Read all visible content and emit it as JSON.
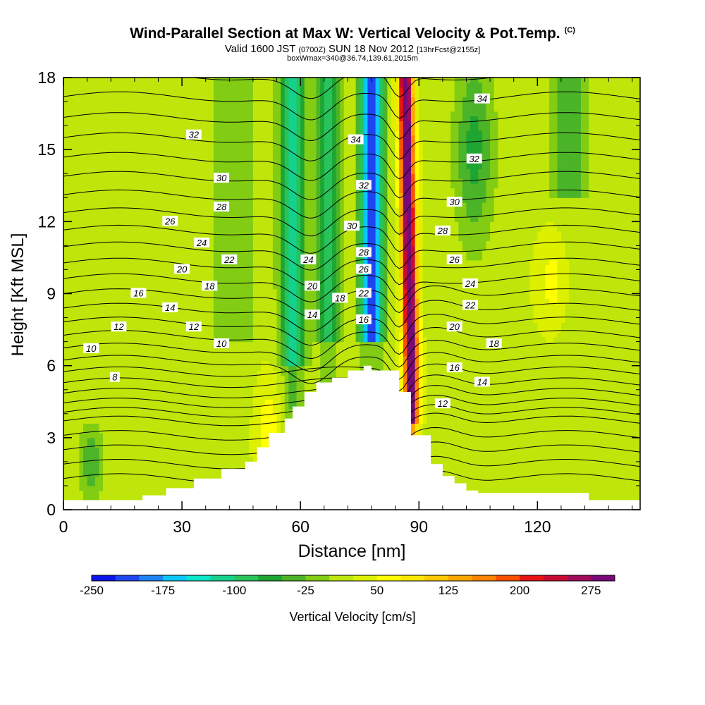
{
  "title": {
    "main": "Wind-Parallel Section at Max W: Vertical Velocity & Pot.Temp.",
    "copyright": "(C)",
    "subtitle_a": "Valid 1600 JST",
    "subtitle_b": "(0700Z)",
    "subtitle_c": "SUN 18 Nov 2012",
    "subtitle_d": "[13hrFcst@2155z]",
    "box": "boxWmax=340@36.74,139.61,2015m"
  },
  "chart_data": {
    "type": "heatmap",
    "xlabel": "Distance [nm]",
    "ylabel": "Height [Kft MSL]",
    "xlim": [
      0,
      146
    ],
    "ylim": [
      0,
      18
    ],
    "x_ticks": [
      "0",
      "30",
      "60",
      "90",
      "120"
    ],
    "x_tick_values": [
      0,
      30,
      60,
      90,
      120
    ],
    "x_minor_step": 6,
    "y_ticks": [
      "0",
      "3",
      "6",
      "9",
      "12",
      "15",
      "18"
    ],
    "y_tick_values": [
      0,
      3,
      6,
      9,
      12,
      15,
      18
    ],
    "y_minor_step": 1,
    "colorbar": {
      "label": "Vertical Velocity [cm/s]",
      "tick_labels": [
        "-250",
        "-175",
        "-100",
        "-25",
        "50",
        "125",
        "200",
        "275"
      ],
      "tick_values": [
        -250,
        -175,
        -100,
        -25,
        50,
        125,
        200,
        275
      ],
      "range": [
        -250,
        300
      ],
      "step": 25,
      "colors": [
        "#0a14e6",
        "#1e46f0",
        "#1e82f5",
        "#0ac8f5",
        "#0ae6c8",
        "#14d28c",
        "#28c35a",
        "#1ea532",
        "#4bb428",
        "#82cd14",
        "#bee60a",
        "#dcf000",
        "#ffff00",
        "#fae600",
        "#ffc800",
        "#ffa500",
        "#ff8200",
        "#fa5000",
        "#e61414",
        "#c80a32",
        "#a00a5a",
        "#780a78"
      ]
    },
    "terrain_kft": [
      [
        0,
        0.4
      ],
      [
        20,
        0.4
      ],
      [
        20,
        0.6
      ],
      [
        26,
        0.6
      ],
      [
        26,
        0.9
      ],
      [
        33,
        0.9
      ],
      [
        33,
        1.3
      ],
      [
        40,
        1.3
      ],
      [
        40,
        1.7
      ],
      [
        46,
        1.7
      ],
      [
        46,
        2.0
      ],
      [
        49,
        2.0
      ],
      [
        49,
        2.6
      ],
      [
        52,
        2.6
      ],
      [
        52,
        3.2
      ],
      [
        56,
        3.2
      ],
      [
        56,
        3.8
      ],
      [
        58,
        3.8
      ],
      [
        58,
        4.3
      ],
      [
        61,
        4.3
      ],
      [
        61,
        4.9
      ],
      [
        64,
        4.9
      ],
      [
        64,
        5.3
      ],
      [
        68,
        5.3
      ],
      [
        68,
        5.5
      ],
      [
        72,
        5.5
      ],
      [
        72,
        5.8
      ],
      [
        76,
        5.8
      ],
      [
        76,
        6.0
      ],
      [
        78,
        6.0
      ],
      [
        78,
        5.8
      ],
      [
        82,
        5.8
      ],
      [
        85,
        5.8
      ],
      [
        85,
        4.9
      ],
      [
        88,
        4.9
      ],
      [
        88,
        3.1
      ],
      [
        93,
        3.1
      ],
      [
        93,
        1.9
      ],
      [
        96,
        1.9
      ],
      [
        96,
        1.4
      ],
      [
        99,
        1.4
      ],
      [
        99,
        1.1
      ],
      [
        102,
        1.1
      ],
      [
        102,
        0.8
      ],
      [
        105,
        0.8
      ],
      [
        105,
        0.7
      ],
      [
        133,
        0.7
      ],
      [
        133,
        0.4
      ],
      [
        146,
        0.4
      ]
    ],
    "theta_contours": [
      8,
      10,
      12,
      14,
      16,
      18,
      20,
      22,
      24,
      26,
      28,
      30,
      32,
      34
    ],
    "contour_labels": [
      {
        "text": "32",
        "x": 33,
        "y": 15.6
      },
      {
        "text": "30",
        "x": 40,
        "y": 13.8
      },
      {
        "text": "28",
        "x": 40,
        "y": 12.6
      },
      {
        "text": "26",
        "x": 27,
        "y": 12.0
      },
      {
        "text": "24",
        "x": 35,
        "y": 11.1
      },
      {
        "text": "22",
        "x": 42,
        "y": 10.4
      },
      {
        "text": "20",
        "x": 30,
        "y": 10.0
      },
      {
        "text": "18",
        "x": 37,
        "y": 9.3
      },
      {
        "text": "16",
        "x": 19,
        "y": 9.0
      },
      {
        "text": "14",
        "x": 27,
        "y": 8.4
      },
      {
        "text": "12",
        "x": 14,
        "y": 7.6
      },
      {
        "text": "12",
        "x": 33,
        "y": 7.6
      },
      {
        "text": "10",
        "x": 40,
        "y": 6.9
      },
      {
        "text": "10",
        "x": 7,
        "y": 6.7
      },
      {
        "text": "8",
        "x": 13,
        "y": 5.5
      },
      {
        "text": "24",
        "x": 62,
        "y": 10.4
      },
      {
        "text": "20",
        "x": 63,
        "y": 9.3
      },
      {
        "text": "18",
        "x": 70,
        "y": 8.8
      },
      {
        "text": "14",
        "x": 63,
        "y": 8.1
      },
      {
        "text": "16",
        "x": 76,
        "y": 7.9
      },
      {
        "text": "22",
        "x": 76,
        "y": 9.0
      },
      {
        "text": "26",
        "x": 76,
        "y": 10.0
      },
      {
        "text": "28",
        "x": 76,
        "y": 10.7
      },
      {
        "text": "30",
        "x": 73,
        "y": 11.8
      },
      {
        "text": "32",
        "x": 76,
        "y": 13.5
      },
      {
        "text": "34",
        "x": 74,
        "y": 15.4
      },
      {
        "text": "34",
        "x": 106,
        "y": 17.1
      },
      {
        "text": "32",
        "x": 104,
        "y": 14.6
      },
      {
        "text": "30",
        "x": 99,
        "y": 12.8
      },
      {
        "text": "28",
        "x": 96,
        "y": 11.6
      },
      {
        "text": "26",
        "x": 99,
        "y": 10.4
      },
      {
        "text": "24",
        "x": 103,
        "y": 9.4
      },
      {
        "text": "22",
        "x": 103,
        "y": 8.5
      },
      {
        "text": "20",
        "x": 99,
        "y": 7.6
      },
      {
        "text": "18",
        "x": 109,
        "y": 6.9
      },
      {
        "text": "16",
        "x": 99,
        "y": 5.9
      },
      {
        "text": "14",
        "x": 106,
        "y": 5.3
      },
      {
        "text": "12",
        "x": 96,
        "y": 4.4
      }
    ]
  }
}
